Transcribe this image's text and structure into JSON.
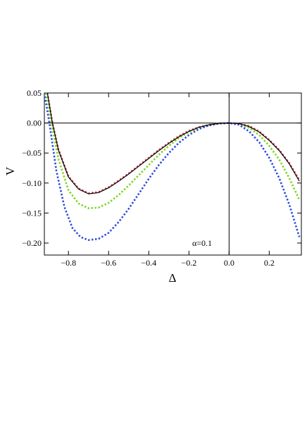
{
  "chart_data": {
    "type": "line",
    "xlabel": "Δ",
    "ylabel": "V",
    "annotation": "α=0.1",
    "xlim": [
      -0.92,
      0.36
    ],
    "ylim": [
      -0.22,
      0.05
    ],
    "x_ticks": [
      -0.8,
      -0.6,
      -0.4,
      -0.2,
      0.0,
      0.2
    ],
    "x_tick_labels": [
      "−0.8",
      "−0.6",
      "−0.4",
      "−0.2",
      "0.0",
      "0.2"
    ],
    "y_ticks": [
      0.05,
      0.0,
      -0.05,
      -0.1,
      -0.15,
      -0.2
    ],
    "y_tick_labels": [
      "0.05",
      "0.00",
      "−0.05",
      "−0.10",
      "−0.15",
      "−0.20"
    ],
    "grid": false,
    "series": [
      {
        "color": "#000000",
        "style": "solid",
        "points": [
          [
            -0.905,
            0.05
          ],
          [
            -0.88,
            0.0
          ],
          [
            -0.85,
            -0.045
          ],
          [
            -0.8,
            -0.09
          ],
          [
            -0.75,
            -0.11
          ],
          [
            -0.7,
            -0.118
          ],
          [
            -0.65,
            -0.116
          ],
          [
            -0.6,
            -0.108
          ],
          [
            -0.55,
            -0.097
          ],
          [
            -0.5,
            -0.085
          ],
          [
            -0.45,
            -0.072
          ],
          [
            -0.4,
            -0.059
          ],
          [
            -0.35,
            -0.046
          ],
          [
            -0.3,
            -0.034
          ],
          [
            -0.25,
            -0.023
          ],
          [
            -0.2,
            -0.014
          ],
          [
            -0.15,
            -0.007
          ],
          [
            -0.1,
            -0.003
          ],
          [
            -0.05,
            -0.0005
          ],
          [
            0.0,
            0.0
          ],
          [
            0.05,
            -0.001
          ],
          [
            0.1,
            -0.006
          ],
          [
            0.15,
            -0.015
          ],
          [
            0.2,
            -0.029
          ],
          [
            0.25,
            -0.046
          ],
          [
            0.3,
            -0.068
          ],
          [
            0.35,
            -0.097
          ]
        ]
      },
      {
        "color": "#e8374f",
        "style": "dotted",
        "points": [
          [
            -0.905,
            0.05
          ],
          [
            -0.88,
            0.0
          ],
          [
            -0.85,
            -0.044
          ],
          [
            -0.8,
            -0.089
          ],
          [
            -0.75,
            -0.109
          ],
          [
            -0.7,
            -0.117
          ],
          [
            -0.65,
            -0.115
          ],
          [
            -0.6,
            -0.107
          ],
          [
            -0.55,
            -0.096
          ],
          [
            -0.5,
            -0.084
          ],
          [
            -0.45,
            -0.071
          ],
          [
            -0.4,
            -0.058
          ],
          [
            -0.35,
            -0.045
          ],
          [
            -0.3,
            -0.033
          ],
          [
            -0.25,
            -0.022
          ],
          [
            -0.2,
            -0.013
          ],
          [
            -0.15,
            -0.007
          ],
          [
            -0.1,
            -0.003
          ],
          [
            -0.05,
            -0.0005
          ],
          [
            0.0,
            0.0
          ],
          [
            0.05,
            -0.001
          ],
          [
            0.1,
            -0.005
          ],
          [
            0.15,
            -0.014
          ],
          [
            0.2,
            -0.028
          ],
          [
            0.25,
            -0.045
          ],
          [
            0.3,
            -0.067
          ],
          [
            0.35,
            -0.095
          ]
        ]
      },
      {
        "color": "#7ad61c",
        "style": "dotted",
        "points": [
          [
            -0.91,
            0.05
          ],
          [
            -0.885,
            0.0
          ],
          [
            -0.85,
            -0.06
          ],
          [
            -0.8,
            -0.112
          ],
          [
            -0.75,
            -0.134
          ],
          [
            -0.7,
            -0.142
          ],
          [
            -0.65,
            -0.141
          ],
          [
            -0.6,
            -0.133
          ],
          [
            -0.55,
            -0.12
          ],
          [
            -0.5,
            -0.104
          ],
          [
            -0.45,
            -0.087
          ],
          [
            -0.4,
            -0.07
          ],
          [
            -0.35,
            -0.053
          ],
          [
            -0.3,
            -0.038
          ],
          [
            -0.25,
            -0.025
          ],
          [
            -0.2,
            -0.015
          ],
          [
            -0.15,
            -0.008
          ],
          [
            -0.1,
            -0.003
          ],
          [
            -0.05,
            -0.0006
          ],
          [
            0.0,
            0.0
          ],
          [
            0.05,
            -0.002
          ],
          [
            0.1,
            -0.008
          ],
          [
            0.15,
            -0.02
          ],
          [
            0.2,
            -0.038
          ],
          [
            0.25,
            -0.061
          ],
          [
            0.3,
            -0.092
          ],
          [
            0.35,
            -0.128
          ]
        ]
      },
      {
        "color": "#2b4be0",
        "style": "dotted",
        "points": [
          [
            -0.92,
            0.05
          ],
          [
            -0.895,
            0.0
          ],
          [
            -0.86,
            -0.08
          ],
          [
            -0.82,
            -0.14
          ],
          [
            -0.78,
            -0.175
          ],
          [
            -0.74,
            -0.19
          ],
          [
            -0.7,
            -0.195
          ],
          [
            -0.65,
            -0.193
          ],
          [
            -0.6,
            -0.183
          ],
          [
            -0.55,
            -0.165
          ],
          [
            -0.5,
            -0.143
          ],
          [
            -0.45,
            -0.118
          ],
          [
            -0.4,
            -0.093
          ],
          [
            -0.35,
            -0.07
          ],
          [
            -0.3,
            -0.05
          ],
          [
            -0.25,
            -0.033
          ],
          [
            -0.2,
            -0.02
          ],
          [
            -0.15,
            -0.01
          ],
          [
            -0.1,
            -0.004
          ],
          [
            -0.05,
            -0.001
          ],
          [
            0.0,
            0.0
          ],
          [
            0.05,
            -0.003
          ],
          [
            0.1,
            -0.014
          ],
          [
            0.15,
            -0.032
          ],
          [
            0.2,
            -0.058
          ],
          [
            0.25,
            -0.092
          ],
          [
            0.3,
            -0.136
          ],
          [
            0.35,
            -0.19
          ]
        ]
      }
    ]
  }
}
